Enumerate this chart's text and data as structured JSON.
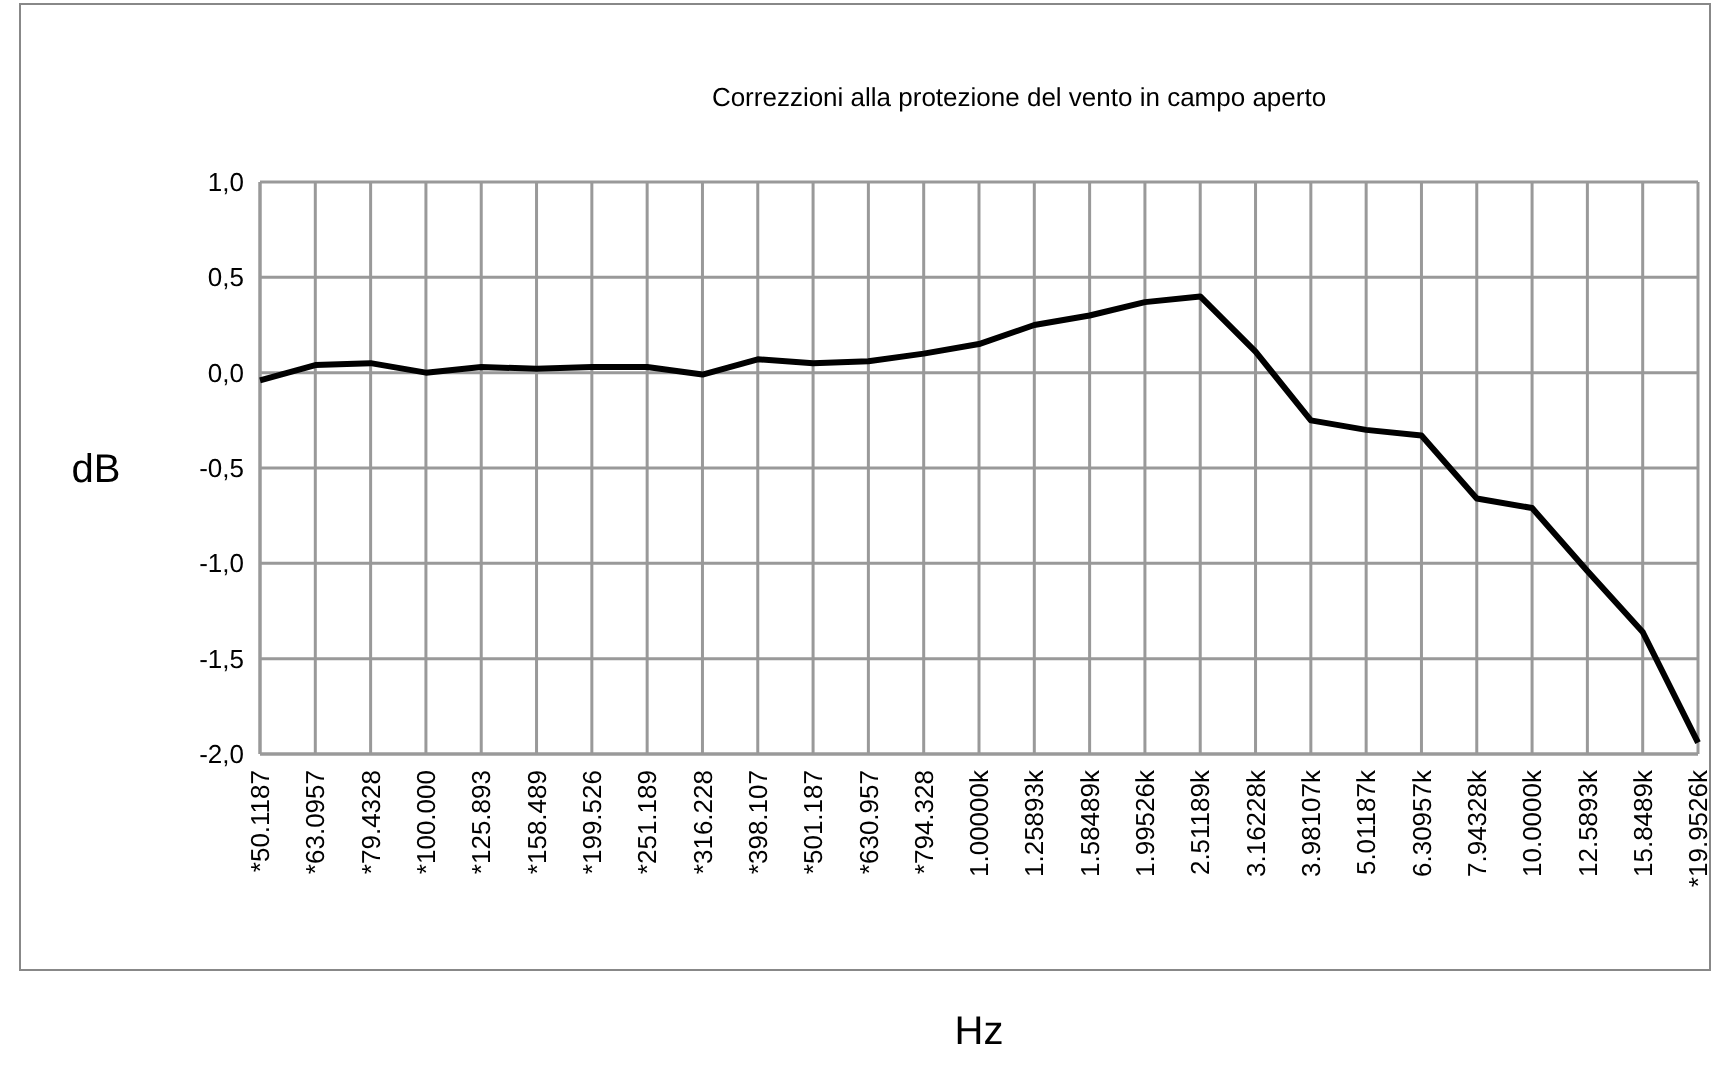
{
  "chart_data": {
    "type": "line",
    "title": "Correzzioni alla protezione del vento in campo aperto",
    "xlabel": "Hz",
    "ylabel": "dB",
    "categories": [
      "*50.1187",
      "*63.0957",
      "*79.4328",
      "*100.000",
      "*125.893",
      "*158.489",
      "*199.526",
      "*251.189",
      "*316.228",
      "*398.107",
      "*501.187",
      "*630.957",
      "*794.328",
      "1.00000k",
      "1.25893k",
      "1.58489k",
      "1.99526k",
      "2.51189k",
      "3.16228k",
      "3.98107k",
      "5.01187k",
      "6.30957k",
      "7.94328k",
      "10.0000k",
      "12.5893k",
      "15.8489k",
      "*19.9526k"
    ],
    "series": [
      {
        "color": "#000000",
        "values": [
          -0.04,
          0.04,
          0.05,
          0,
          0.03,
          0.02,
          0.03,
          0.03,
          -0.01,
          0.07,
          0.05,
          0.06,
          0.1,
          0.15,
          0.25,
          0.3,
          0.37,
          0.4,
          0.11,
          -0.25,
          -0.3,
          -0.33,
          -0.66,
          -0.71,
          -1.04,
          -1.36,
          -1.94
        ]
      }
    ],
    "ylim": [
      -2,
      1
    ],
    "yticks": [
      {
        "value": -2,
        "label": "-2,0"
      },
      {
        "value": -1.5,
        "label": "-1,5"
      },
      {
        "value": -1,
        "label": "-1,0"
      },
      {
        "value": -0.5,
        "label": "-0,5"
      },
      {
        "value": 0,
        "label": "0,0"
      },
      {
        "value": 0.5,
        "label": "0,5"
      },
      {
        "value": 1,
        "label": "1,0"
      }
    ],
    "grid": true,
    "marker": "none",
    "line_style": "solid"
  }
}
